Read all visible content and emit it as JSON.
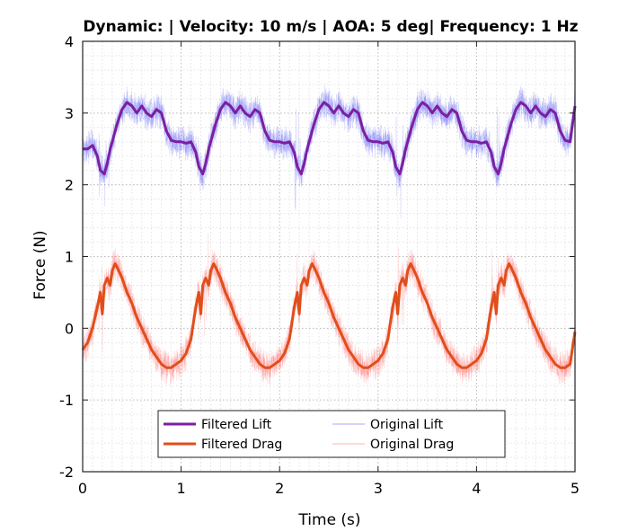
{
  "chart_data": {
    "type": "line",
    "title": "Dynamic: | Velocity: 10 m/s | AOA: 5 deg| Frequency: 1 Hz",
    "xlabel": "Time (s)",
    "ylabel": "Force (N)",
    "xlim": [
      0,
      5
    ],
    "ylim": [
      -2,
      4
    ],
    "xticks": [
      0,
      1,
      2,
      3,
      4,
      5
    ],
    "yticks": [
      -2,
      -1,
      0,
      1,
      2,
      3,
      4
    ],
    "xtick_labels": [
      "0",
      "1",
      "2",
      "3",
      "4",
      "5"
    ],
    "ytick_labels": [
      "-2",
      "-1",
      "0",
      "1",
      "2",
      "3",
      "4"
    ],
    "grid": "major and minor, dotted",
    "legend_position": "bottom-center",
    "legend_columns": 2,
    "period": 1,
    "series": [
      {
        "name": "Filtered Lift",
        "color": "#7B1FA2",
        "style": "solid-thick",
        "x": [
          0.0,
          0.05,
          0.1,
          0.15,
          0.18,
          0.22,
          0.25,
          0.28,
          0.3,
          0.35,
          0.4,
          0.45,
          0.5,
          0.55,
          0.6,
          0.65,
          0.7,
          0.75,
          0.8,
          0.85,
          0.9,
          0.95,
          1.0,
          1.05,
          1.1,
          1.15,
          1.18,
          1.22,
          1.25,
          1.28,
          1.3,
          1.35,
          1.4,
          1.45,
          1.5,
          1.55,
          1.6,
          1.65,
          1.7,
          1.75,
          1.8,
          1.85,
          1.9,
          1.95,
          2.0,
          2.05,
          2.1,
          2.15,
          2.18,
          2.22,
          2.25,
          2.28,
          2.3,
          2.35,
          2.4,
          2.45,
          2.5,
          2.55,
          2.6,
          2.65,
          2.7,
          2.75,
          2.8,
          2.85,
          2.9,
          2.95,
          3.0,
          3.05,
          3.1,
          3.15,
          3.18,
          3.22,
          3.25,
          3.28,
          3.3,
          3.35,
          3.4,
          3.45,
          3.5,
          3.55,
          3.6,
          3.65,
          3.7,
          3.75,
          3.8,
          3.85,
          3.9,
          3.95,
          4.0,
          4.05,
          4.1,
          4.15,
          4.18,
          4.22,
          4.25,
          4.28,
          4.3,
          4.35,
          4.4,
          4.45,
          4.5,
          4.55,
          4.6,
          4.65,
          4.7,
          4.75,
          4.8,
          4.85,
          4.9,
          4.95,
          5.0
        ],
        "values": [
          2.5,
          2.5,
          2.55,
          2.4,
          2.2,
          2.15,
          2.3,
          2.5,
          2.6,
          2.85,
          3.05,
          3.15,
          3.1,
          3.0,
          3.1,
          3.0,
          2.95,
          3.05,
          3.0,
          2.75,
          2.62,
          2.6,
          2.6,
          2.58,
          2.6,
          2.45,
          2.25,
          2.15,
          2.3,
          2.5,
          2.6,
          2.85,
          3.05,
          3.15,
          3.1,
          3.0,
          3.1,
          3.0,
          2.95,
          3.05,
          3.0,
          2.75,
          2.62,
          2.6,
          2.6,
          2.58,
          2.6,
          2.45,
          2.25,
          2.15,
          2.3,
          2.5,
          2.6,
          2.85,
          3.05,
          3.15,
          3.1,
          3.0,
          3.1,
          3.0,
          2.95,
          3.05,
          3.0,
          2.75,
          2.62,
          2.6,
          2.6,
          2.58,
          2.6,
          2.45,
          2.25,
          2.15,
          2.3,
          2.5,
          2.6,
          2.85,
          3.05,
          3.15,
          3.1,
          3.0,
          3.1,
          3.0,
          2.95,
          3.05,
          3.0,
          2.75,
          2.62,
          2.6,
          2.6,
          2.58,
          2.6,
          2.45,
          2.25,
          2.15,
          2.3,
          2.5,
          2.6,
          2.85,
          3.05,
          3.15,
          3.1,
          3.0,
          3.1,
          3.0,
          2.95,
          3.05,
          3.0,
          2.75,
          2.62,
          2.6,
          3.1
        ]
      },
      {
        "name": "Filtered Drag",
        "color": "#E04E1B",
        "style": "solid-thick",
        "x": [
          0.0,
          0.05,
          0.1,
          0.15,
          0.18,
          0.2,
          0.22,
          0.25,
          0.28,
          0.3,
          0.33,
          0.35,
          0.4,
          0.45,
          0.5,
          0.55,
          0.6,
          0.65,
          0.7,
          0.75,
          0.8,
          0.85,
          0.9,
          0.95,
          1.0,
          1.05,
          1.1,
          1.15,
          1.18,
          1.2,
          1.22,
          1.25,
          1.28,
          1.3,
          1.33,
          1.35,
          1.4,
          1.45,
          1.5,
          1.55,
          1.6,
          1.65,
          1.7,
          1.75,
          1.8,
          1.85,
          1.9,
          1.95,
          2.0,
          2.05,
          2.1,
          2.15,
          2.18,
          2.2,
          2.22,
          2.25,
          2.28,
          2.3,
          2.33,
          2.35,
          2.4,
          2.45,
          2.5,
          2.55,
          2.6,
          2.65,
          2.7,
          2.75,
          2.8,
          2.85,
          2.9,
          2.95,
          3.0,
          3.05,
          3.1,
          3.15,
          3.18,
          3.2,
          3.22,
          3.25,
          3.28,
          3.3,
          3.33,
          3.35,
          3.4,
          3.45,
          3.5,
          3.55,
          3.6,
          3.65,
          3.7,
          3.75,
          3.8,
          3.85,
          3.9,
          3.95,
          4.0,
          4.05,
          4.1,
          4.15,
          4.18,
          4.2,
          4.22,
          4.25,
          4.28,
          4.3,
          4.33,
          4.35,
          4.4,
          4.45,
          4.5,
          4.55,
          4.6,
          4.65,
          4.7,
          4.75,
          4.8,
          4.85,
          4.9,
          4.95,
          5.0
        ],
        "values": [
          -0.3,
          -0.2,
          0.0,
          0.3,
          0.5,
          0.2,
          0.6,
          0.7,
          0.6,
          0.8,
          0.9,
          0.85,
          0.7,
          0.5,
          0.35,
          0.15,
          0.0,
          -0.15,
          -0.3,
          -0.4,
          -0.5,
          -0.55,
          -0.55,
          -0.5,
          -0.45,
          -0.35,
          -0.15,
          0.3,
          0.5,
          0.2,
          0.6,
          0.7,
          0.6,
          0.8,
          0.9,
          0.85,
          0.7,
          0.5,
          0.35,
          0.15,
          0.0,
          -0.15,
          -0.3,
          -0.4,
          -0.5,
          -0.55,
          -0.55,
          -0.5,
          -0.45,
          -0.35,
          -0.15,
          0.3,
          0.5,
          0.2,
          0.6,
          0.7,
          0.6,
          0.8,
          0.9,
          0.85,
          0.7,
          0.5,
          0.35,
          0.15,
          0.0,
          -0.15,
          -0.3,
          -0.4,
          -0.5,
          -0.55,
          -0.55,
          -0.5,
          -0.45,
          -0.35,
          -0.15,
          0.3,
          0.5,
          0.2,
          0.6,
          0.7,
          0.6,
          0.8,
          0.9,
          0.85,
          0.7,
          0.5,
          0.35,
          0.15,
          0.0,
          -0.15,
          -0.3,
          -0.4,
          -0.5,
          -0.55,
          -0.55,
          -0.5,
          -0.45,
          -0.35,
          -0.15,
          0.3,
          0.5,
          0.2,
          0.6,
          0.7,
          0.6,
          0.8,
          0.9,
          0.85,
          0.7,
          0.5,
          0.35,
          0.15,
          0.0,
          -0.15,
          -0.3,
          -0.4,
          -0.5,
          -0.55,
          -0.55,
          -0.5,
          -0.05
        ]
      },
      {
        "name": "Original Lift",
        "color": "#3B3BF0",
        "style": "thin-noisy",
        "follows": "Filtered Lift",
        "noise_amplitude": 0.45
      },
      {
        "name": "Original Drag",
        "color": "#FF4B4B",
        "style": "thin-noisy",
        "follows": "Filtered Drag",
        "noise_amplitude": 0.45
      }
    ]
  }
}
